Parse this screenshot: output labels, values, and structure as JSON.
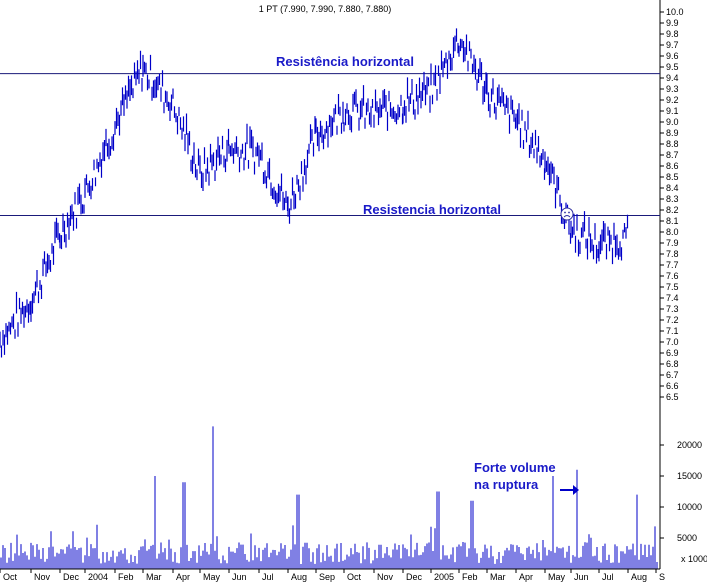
{
  "chart_data": [
    {
      "type": "line",
      "title": "1 PT (7.990, 7.990, 7.880, 7.880)",
      "y_ticks": [
        "10.0",
        "9.9",
        "9.8",
        "9.7",
        "9.6",
        "9.5",
        "9.4",
        "9.3",
        "9.2",
        "9.1",
        "9.0",
        "8.9",
        "8.8",
        "8.7",
        "8.6",
        "8.5",
        "8.4",
        "8.3",
        "8.2",
        "8.1",
        "8.0",
        "7.9",
        "7.8",
        "7.7",
        "7.6",
        "7.5",
        "7.4",
        "7.3",
        "7.2",
        "7.1",
        "7.0",
        "6.9",
        "6.8",
        "6.7",
        "6.6",
        "6.5"
      ],
      "ylim": [
        6.45,
        10.05
      ],
      "x_labels": [
        "Oct",
        "Nov",
        "Dec",
        "2004",
        "Feb",
        "Mar",
        "Apr",
        "May",
        "Jun",
        "Jul",
        "Aug",
        "Sep",
        "Oct",
        "Nov",
        "Dec",
        "2005",
        "Feb",
        "Mar",
        "Apr",
        "May",
        "Jun",
        "Jul",
        "Aug",
        "S"
      ],
      "series": [
        {
          "points": [
            [
              "Oct 2003",
              6.95
            ],
            [
              "Nov 2003",
              7.3
            ],
            [
              "Dec 2003",
              7.9
            ],
            [
              "Jan 2004",
              8.3
            ],
            [
              "Feb 2004",
              8.9
            ],
            [
              "Mar 2004",
              9.42
            ],
            [
              "Apr 2004",
              9.1
            ],
            [
              "May 2004",
              8.45
            ],
            [
              "Jun 2004",
              8.7
            ],
            [
              "Jul 2004",
              8.65
            ],
            [
              "Aug 2004",
              8.15
            ],
            [
              "Sep 2004",
              8.8
            ],
            [
              "Oct 2004",
              9.05
            ],
            [
              "Nov 2004",
              9.0
            ],
            [
              "Dec 2004",
              9.1
            ],
            [
              "Jan 2005",
              9.2
            ],
            [
              "Feb 2005",
              9.7
            ],
            [
              "Mar 2005",
              9.2
            ],
            [
              "Apr 2005",
              8.95
            ],
            [
              "May 2005",
              8.6
            ],
            [
              "Jun 2005",
              7.95
            ],
            [
              "Jul 2005",
              7.8
            ],
            [
              "Aug 2005",
              7.9
            ]
          ]
        }
      ],
      "resistance_levels": [
        9.44,
        8.15
      ],
      "annotations": [
        "Resistência horizontal",
        "Resistencia horizontal"
      ],
      "marker_icon": "frown-face-icon",
      "colors": {
        "price": "#0000c8",
        "volume": "#0000c8",
        "line": "#1a1a7a",
        "annotation": "#1a1ac8"
      }
    },
    {
      "type": "bar",
      "y_ticks": [
        "20000",
        "15000",
        "10000",
        "5000"
      ],
      "ylim": [
        0,
        26000
      ],
      "unit_label": "x 1000",
      "annotation": [
        "Forte volume",
        "na ruptura"
      ],
      "arrow_icon": "arrow-right-icon",
      "spikes": [
        [
          "Mar 2004",
          15000
        ],
        [
          "Apr 2004",
          14000
        ],
        [
          "May 2004",
          23000
        ],
        [
          "Aug 2004",
          12000
        ],
        [
          "Jan 2005",
          12500
        ],
        [
          "Feb 2005",
          11000
        ],
        [
          "May 2005",
          15000
        ],
        [
          "Jun 2005",
          16000
        ],
        [
          "Aug 2005",
          12000
        ]
      ]
    }
  ]
}
